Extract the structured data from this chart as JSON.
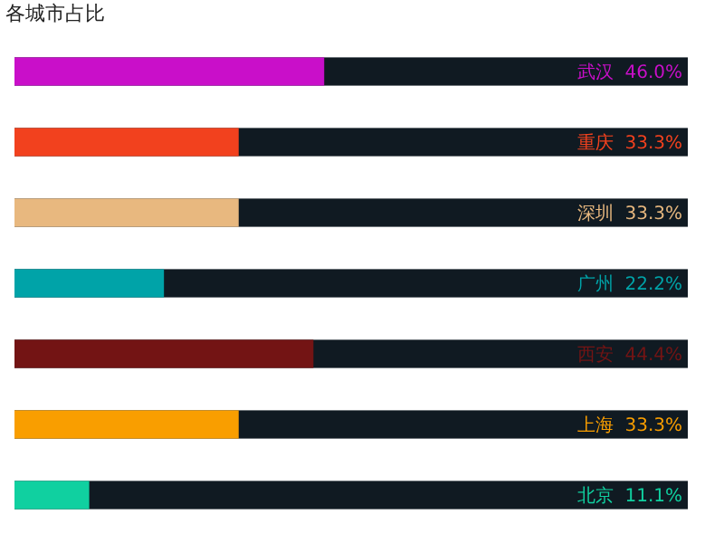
{
  "chart_data": {
    "type": "bar",
    "orientation": "horizontal",
    "title": "各城市占比",
    "categories": [
      "武汉",
      "重庆",
      "深圳",
      "广州",
      "西安",
      "上海",
      "北京"
    ],
    "values": [
      46.0,
      33.3,
      33.3,
      22.2,
      44.4,
      33.3,
      11.1
    ],
    "value_labels": [
      "46.0%",
      "33.3%",
      "33.3%",
      "22.2%",
      "44.4%",
      "33.3%",
      "11.1%"
    ],
    "colors": [
      "#c90fc9",
      "#f2411e",
      "#e8b87f",
      "#00a3a8",
      "#731414",
      "#f99e00",
      "#10d0a0"
    ],
    "xlim": [
      0,
      100
    ]
  }
}
